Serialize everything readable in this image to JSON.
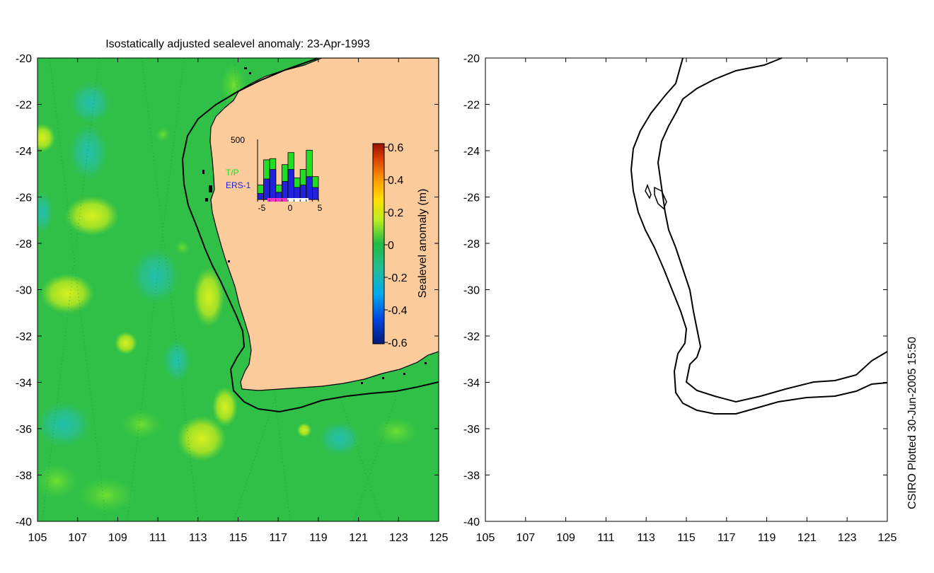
{
  "title": "Isostatically adjusted sealevel anomaly: 23-Apr-1993",
  "credit": "CSIRO Plotted 30-Jun-2005 15:50",
  "axes": {
    "lon_ticks": [
      "105",
      "107",
      "109",
      "111",
      "113",
      "115",
      "117",
      "119",
      "121",
      "123",
      "125"
    ],
    "lat_ticks": [
      "-20",
      "-22",
      "-24",
      "-26",
      "-28",
      "-30",
      "-32",
      "-34",
      "-36",
      "-38",
      "-40"
    ],
    "lon_range": [
      105,
      125
    ],
    "lat_range": [
      -40,
      -20
    ]
  },
  "colorbar": {
    "label": "Sealevel anomaly (m)",
    "ticks": [
      "0.6",
      "0.4",
      "0.2",
      "0",
      "-0.2",
      "-0.4",
      "-0.6"
    ],
    "range": [
      -0.6,
      0.6
    ]
  },
  "inset": {
    "ymax_label": "500",
    "series": [
      {
        "name": "T/P",
        "color": "#22dd22"
      },
      {
        "name": "ERS-1",
        "color": "#2222dd"
      }
    ],
    "x_ticks": [
      "-5",
      "0",
      "5"
    ],
    "tp_values": [
      120,
      330,
      340,
      120,
      290,
      390,
      180,
      250,
      410,
      190
    ],
    "ers_values": [
      50,
      170,
      250,
      60,
      150,
      250,
      100,
      120,
      190,
      100
    ]
  },
  "colors": {
    "land": "#fccb9c",
    "ocean": "#30c048",
    "coast": "#000000"
  }
}
